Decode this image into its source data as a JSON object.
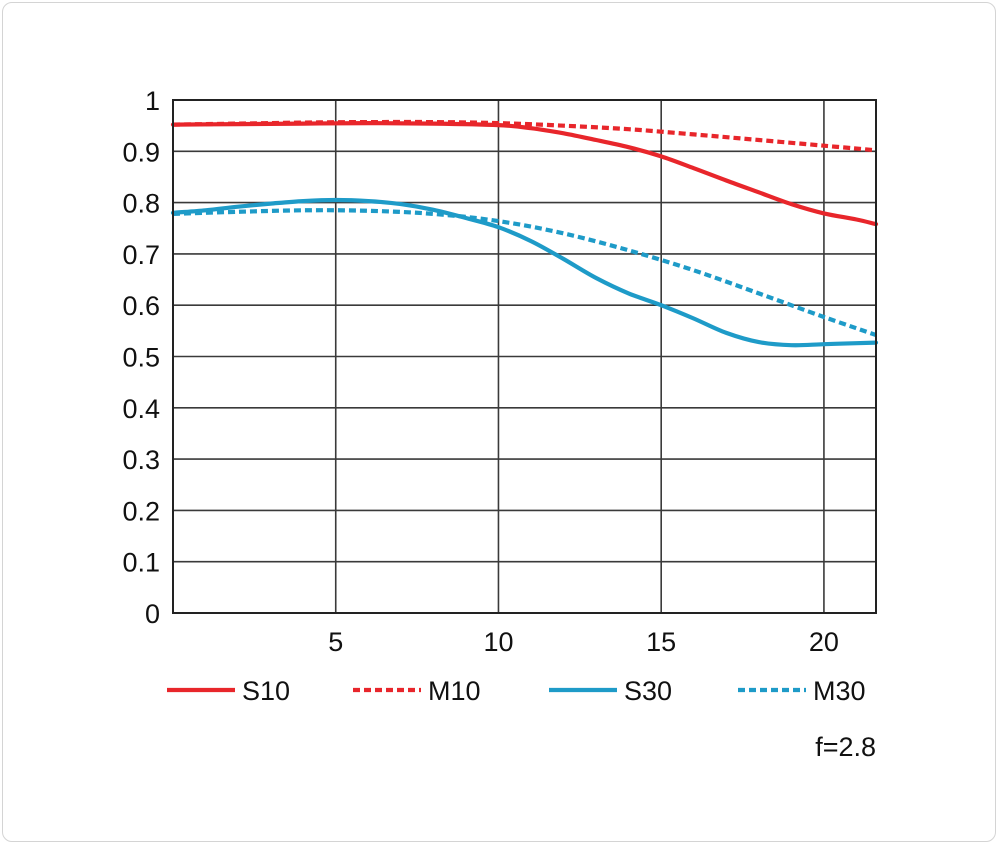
{
  "chart_data": {
    "type": "line",
    "title": "",
    "xlabel": "",
    "ylabel": "",
    "xlim": [
      0,
      21.6
    ],
    "ylim": [
      0,
      1
    ],
    "x_ticks": [
      5,
      10,
      15,
      20
    ],
    "y_ticks": [
      0,
      0.1,
      0.2,
      0.3,
      0.4,
      0.5,
      0.6,
      0.7,
      0.8,
      0.9,
      1
    ],
    "x_tick_labels": [
      "5",
      "10",
      "15",
      "20"
    ],
    "y_tick_labels": [
      "0",
      "0.1",
      "0.2",
      "0.3",
      "0.4",
      "0.5",
      "0.6",
      "0.7",
      "0.8",
      "0.9",
      "1"
    ],
    "grid": true,
    "legend_position": "bottom",
    "annotation": "f=2.8",
    "series": [
      {
        "name": "S10",
        "color": "#e8262b",
        "style": "solid",
        "points": [
          [
            0,
            0.952
          ],
          [
            2,
            0.953
          ],
          [
            4,
            0.954
          ],
          [
            6,
            0.955
          ],
          [
            8,
            0.954
          ],
          [
            10,
            0.951
          ],
          [
            11,
            0.945
          ],
          [
            12,
            0.935
          ],
          [
            13,
            0.922
          ],
          [
            14,
            0.908
          ],
          [
            15,
            0.89
          ],
          [
            16,
            0.867
          ],
          [
            17,
            0.843
          ],
          [
            18,
            0.82
          ],
          [
            19,
            0.797
          ],
          [
            20,
            0.779
          ],
          [
            21,
            0.767
          ],
          [
            21.6,
            0.758
          ]
        ]
      },
      {
        "name": "M10",
        "color": "#e8262b",
        "style": "dotted",
        "points": [
          [
            0,
            0.952
          ],
          [
            2,
            0.954
          ],
          [
            4,
            0.956
          ],
          [
            6,
            0.957
          ],
          [
            8,
            0.957
          ],
          [
            10,
            0.955
          ],
          [
            12,
            0.95
          ],
          [
            14,
            0.943
          ],
          [
            16,
            0.933
          ],
          [
            18,
            0.922
          ],
          [
            20,
            0.911
          ],
          [
            21.6,
            0.902
          ]
        ]
      },
      {
        "name": "S30",
        "color": "#1e9bc8",
        "style": "solid",
        "points": [
          [
            0,
            0.78
          ],
          [
            1,
            0.785
          ],
          [
            2,
            0.792
          ],
          [
            3,
            0.798
          ],
          [
            4,
            0.803
          ],
          [
            5,
            0.805
          ],
          [
            6,
            0.803
          ],
          [
            7,
            0.797
          ],
          [
            8,
            0.786
          ],
          [
            9,
            0.77
          ],
          [
            10,
            0.752
          ],
          [
            11,
            0.725
          ],
          [
            12,
            0.69
          ],
          [
            13,
            0.653
          ],
          [
            14,
            0.623
          ],
          [
            15,
            0.6
          ],
          [
            16,
            0.574
          ],
          [
            17,
            0.546
          ],
          [
            18,
            0.528
          ],
          [
            19,
            0.522
          ],
          [
            20,
            0.524
          ],
          [
            21,
            0.526
          ],
          [
            21.6,
            0.527
          ]
        ]
      },
      {
        "name": "M30",
        "color": "#1e9bc8",
        "style": "dotted",
        "points": [
          [
            0,
            0.778
          ],
          [
            2,
            0.782
          ],
          [
            4,
            0.785
          ],
          [
            6,
            0.784
          ],
          [
            8,
            0.778
          ],
          [
            10,
            0.764
          ],
          [
            12,
            0.74
          ],
          [
            14,
            0.707
          ],
          [
            16,
            0.668
          ],
          [
            18,
            0.623
          ],
          [
            20,
            0.577
          ],
          [
            21.6,
            0.542
          ]
        ]
      }
    ]
  }
}
